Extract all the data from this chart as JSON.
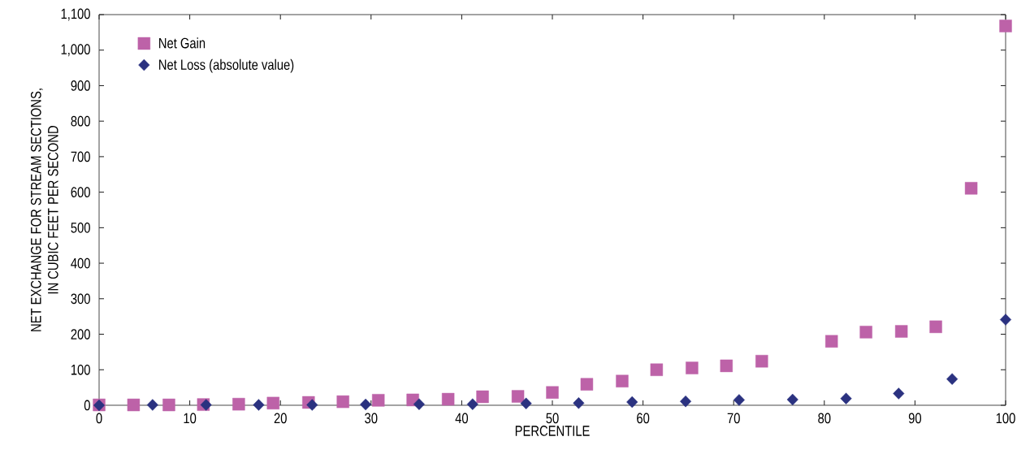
{
  "chart_data": {
    "type": "scatter",
    "xlabel": "PERCENTILE",
    "ylabel": "NET EXCHANGE FOR STREAM SECTIONS,\nIN CUBIC FEET PER SECOND",
    "xlim": [
      0,
      100
    ],
    "ylim": [
      0,
      1100
    ],
    "xticks": [
      0,
      10,
      20,
      30,
      40,
      50,
      60,
      70,
      80,
      90,
      100
    ],
    "yticks": [
      0,
      100,
      200,
      300,
      400,
      500,
      600,
      700,
      800,
      900,
      {
        "value": 1000,
        "label": "1,000"
      },
      {
        "value": 1100,
        "label": "1,100"
      }
    ],
    "legend": "top left",
    "series": [
      {
        "name": "Net Gain",
        "color": "#bd62a8",
        "marker": "square",
        "x": [
          0,
          3.8,
          7.7,
          11.5,
          15.4,
          19.2,
          23.1,
          26.9,
          30.8,
          34.6,
          38.5,
          42.3,
          46.2,
          50.0,
          53.8,
          57.7,
          61.5,
          65.4,
          69.2,
          73.1,
          80.8,
          84.6,
          88.5,
          92.3,
          96.2,
          100
        ],
        "values": [
          1,
          1,
          1,
          2,
          3,
          6,
          8,
          10,
          14,
          15,
          17,
          24,
          25,
          36,
          59,
          68,
          100,
          105,
          111,
          124,
          180,
          206,
          208,
          221,
          611,
          1068
        ]
      },
      {
        "name": "Net Loss (absolute value)",
        "color": "#2b3280",
        "marker": "diamond",
        "x": [
          0,
          5.9,
          11.8,
          17.6,
          23.5,
          29.4,
          35.3,
          41.2,
          47.1,
          52.9,
          58.8,
          64.7,
          70.6,
          76.5,
          82.4,
          88.2,
          94.1,
          100
        ],
        "values": [
          0,
          1,
          1,
          1,
          1,
          2,
          3,
          3,
          5,
          6,
          9,
          11,
          15,
          16,
          19,
          33,
          74,
          241
        ]
      }
    ]
  }
}
